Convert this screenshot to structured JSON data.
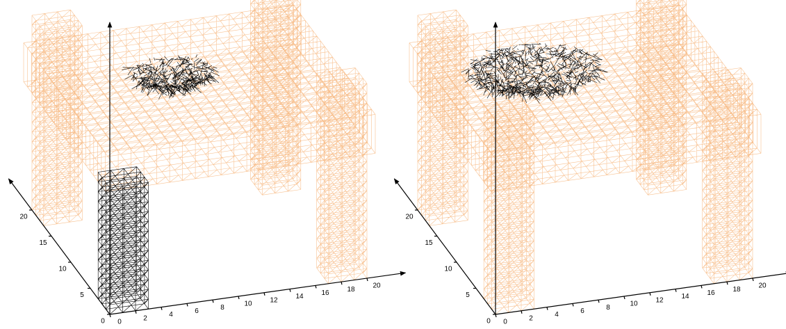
{
  "chart_data": [
    {
      "type": "wireframe",
      "xlim": [
        0,
        23
      ],
      "ylim": [
        0,
        26
      ],
      "zlim": [
        0,
        30
      ],
      "xticks": [
        0,
        2,
        4,
        6,
        8,
        10,
        12,
        14,
        16,
        18,
        20
      ],
      "yticks": [
        0,
        5,
        10,
        15,
        20
      ]
    },
    {
      "type": "wireframe",
      "xlim": [
        0,
        23
      ],
      "ylim": [
        0,
        26
      ],
      "zlim": [
        0,
        30
      ],
      "xticks": [
        0,
        2,
        4,
        6,
        8,
        10,
        12,
        14,
        16,
        18,
        20
      ],
      "yticks": [
        0,
        5,
        10,
        15,
        20
      ]
    }
  ]
}
